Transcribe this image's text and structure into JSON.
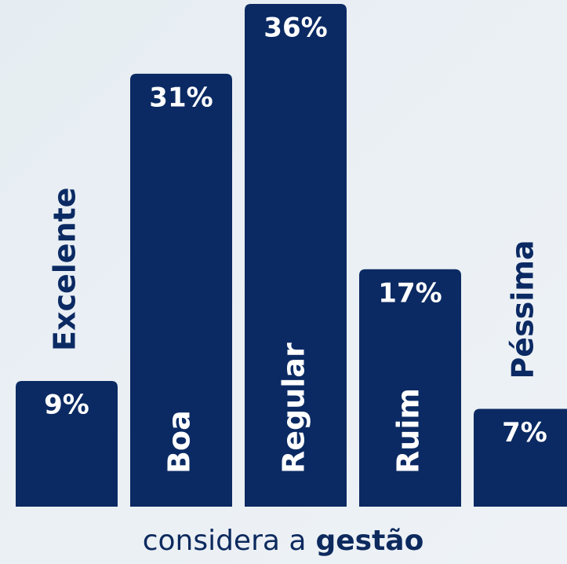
{
  "chart_data": {
    "type": "bar",
    "categories": [
      "Excelente",
      "Boa",
      "Regular",
      "Ruim",
      "Péssima"
    ],
    "values": [
      9,
      31,
      36,
      17,
      7
    ],
    "value_labels": [
      "9%",
      "31%",
      "36%",
      "17%",
      "7%"
    ],
    "color": "#0b2a63",
    "ylim": [
      0,
      36
    ],
    "caption": [
      "considera a",
      "gestão"
    ]
  }
}
